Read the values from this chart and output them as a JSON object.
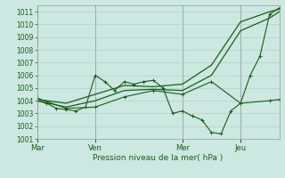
{
  "xlabel": "Pression niveau de la mer( hPa )",
  "ylim": [
    1001,
    1011.5
  ],
  "yticks": [
    1001,
    1002,
    1003,
    1004,
    1005,
    1006,
    1007,
    1008,
    1009,
    1010,
    1011
  ],
  "background_color": "#cce8e0",
  "grid_color": "#aaccc8",
  "line_color": "#1a5c1a",
  "vline_color": "#777777",
  "day_labels": [
    "Mar",
    "Ven",
    "Mer",
    "Jeu"
  ],
  "day_positions": [
    0,
    6,
    15,
    21
  ],
  "xlim": [
    0,
    25
  ],
  "series": [
    {
      "x": [
        0,
        3,
        6,
        9,
        12,
        15,
        18,
        21,
        24,
        25
      ],
      "y": [
        1004.1,
        1003.8,
        1004.5,
        1005.2,
        1005.1,
        1005.3,
        1006.8,
        1010.2,
        1011.0,
        1011.2
      ],
      "marker": false,
      "lw": 0.9
    },
    {
      "x": [
        0,
        3,
        6,
        9,
        12,
        15,
        18,
        21,
        24,
        25
      ],
      "y": [
        1004.0,
        1003.5,
        1004.0,
        1004.8,
        1004.9,
        1004.8,
        1006.0,
        1009.5,
        1010.5,
        1011.0
      ],
      "marker": false,
      "lw": 0.9
    },
    {
      "x": [
        0,
        1,
        2,
        3,
        4,
        5,
        6,
        7,
        8,
        9,
        10,
        11,
        12,
        13,
        14,
        15,
        16,
        17,
        18,
        19,
        20,
        21,
        22,
        23,
        24,
        25
      ],
      "y": [
        1004.0,
        1003.8,
        1003.4,
        1003.3,
        1003.2,
        1003.5,
        1006.0,
        1005.5,
        1004.8,
        1005.5,
        1005.3,
        1005.5,
        1005.6,
        1005.0,
        1003.0,
        1003.2,
        1002.8,
        1002.5,
        1001.5,
        1001.4,
        1003.2,
        1003.8,
        1006.0,
        1007.5,
        1010.8,
        1011.3
      ],
      "marker": true,
      "lw": 0.8
    },
    {
      "x": [
        0,
        3,
        6,
        9,
        12,
        15,
        18,
        21,
        24,
        25
      ],
      "y": [
        1004.2,
        1003.4,
        1003.5,
        1004.3,
        1004.8,
        1004.5,
        1005.5,
        1003.8,
        1004.0,
        1004.1
      ],
      "marker": true,
      "lw": 0.8
    }
  ]
}
